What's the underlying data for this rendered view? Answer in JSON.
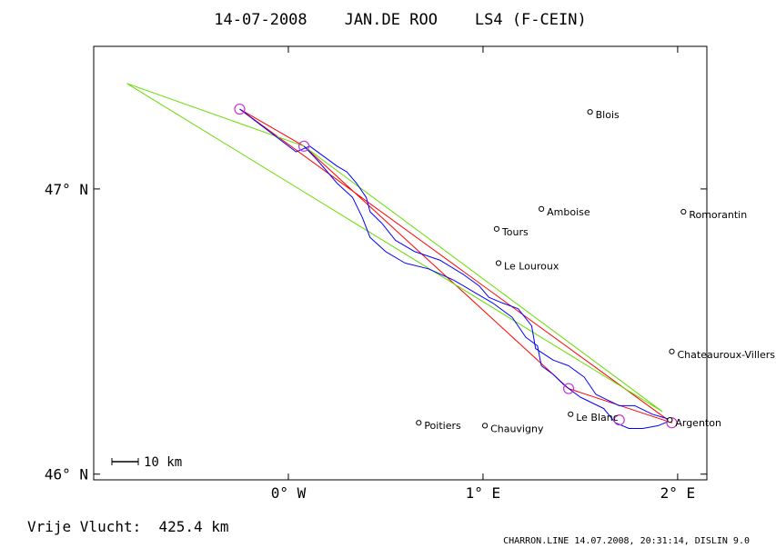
{
  "chart_data": {
    "type": "map",
    "title": "14-07-2008    JAN.DE ROO    LS4 (F-CEIN)",
    "footer_left": "Vrije Vlucht:  425.4 km",
    "footer_right": "CHARRON.LINE 14.07.2008, 20:31:14, DISLIN 9.0",
    "scale_bar_label": "10 km",
    "xlim": [
      -1.0,
      2.15
    ],
    "ylim": [
      45.98,
      47.5
    ],
    "x_ticks": [
      {
        "value": 0,
        "label": "0° W"
      },
      {
        "value": 1,
        "label": "1° E"
      },
      {
        "value": 2,
        "label": "2° E"
      }
    ],
    "y_ticks": [
      {
        "value": 47,
        "label": "47° N"
      },
      {
        "value": 46,
        "label": "46° N"
      }
    ],
    "cities": [
      {
        "name": "Blois",
        "lon": 1.55,
        "lat": 47.27
      },
      {
        "name": "Amboise",
        "lon": 1.3,
        "lat": 46.93
      },
      {
        "name": "Romorantin",
        "lon": 2.03,
        "lat": 46.92
      },
      {
        "name": "Tours",
        "lon": 1.07,
        "lat": 46.86
      },
      {
        "name": "Le Louroux",
        "lon": 1.08,
        "lat": 46.74
      },
      {
        "name": "Chateauroux-Villers",
        "lon": 1.97,
        "lat": 46.43
      },
      {
        "name": "Le Blanc",
        "lon": 1.45,
        "lat": 46.21
      },
      {
        "name": "Argenton",
        "lon": 1.96,
        "lat": 46.19
      },
      {
        "name": "Poitiers",
        "lon": 0.67,
        "lat": 46.18
      },
      {
        "name": "Chauvigny",
        "lon": 1.01,
        "lat": 46.17
      }
    ],
    "turnpoints": [
      {
        "lon": -0.25,
        "lat": 47.28
      },
      {
        "lon": 0.08,
        "lat": 47.15
      },
      {
        "lon": 1.44,
        "lat": 46.3
      },
      {
        "lon": 1.7,
        "lat": 46.19
      },
      {
        "lon": 1.97,
        "lat": 46.18
      }
    ],
    "series": [
      {
        "color": "#ff0000",
        "points": [
          [
            -0.25,
            47.28
          ],
          [
            0.08,
            47.15
          ],
          [
            1.44,
            46.3
          ],
          [
            1.97,
            46.18
          ],
          [
            -0.25,
            47.28
          ]
        ]
      },
      {
        "color": "#66dd00",
        "points": [
          [
            -0.83,
            47.37
          ],
          [
            0.08,
            47.15
          ],
          [
            1.92,
            46.22
          ],
          [
            -0.83,
            47.37
          ]
        ]
      },
      {
        "color": "#0000ff",
        "points": [
          [
            -0.25,
            47.28
          ],
          [
            0.04,
            47.13
          ],
          [
            0.11,
            47.15
          ],
          [
            0.25,
            47.08
          ],
          [
            0.3,
            47.06
          ],
          [
            0.35,
            47.02
          ],
          [
            0.4,
            46.97
          ],
          [
            0.42,
            46.92
          ],
          [
            0.48,
            46.88
          ],
          [
            0.55,
            46.82
          ],
          [
            0.65,
            46.78
          ],
          [
            0.78,
            46.75
          ],
          [
            0.9,
            46.7
          ],
          [
            0.98,
            46.66
          ],
          [
            1.03,
            46.62
          ],
          [
            1.1,
            46.6
          ],
          [
            1.18,
            46.58
          ],
          [
            1.25,
            46.52
          ],
          [
            1.27,
            46.44
          ],
          [
            1.36,
            46.4
          ],
          [
            1.44,
            46.38
          ],
          [
            1.52,
            46.34
          ],
          [
            1.58,
            46.28
          ],
          [
            1.7,
            46.24
          ],
          [
            1.78,
            46.24
          ],
          [
            1.87,
            46.21
          ],
          [
            1.92,
            46.2
          ],
          [
            1.97,
            46.19
          ],
          [
            1.9,
            46.17
          ],
          [
            1.82,
            46.16
          ],
          [
            1.75,
            46.16
          ],
          [
            1.68,
            46.18
          ],
          [
            1.62,
            46.23
          ],
          [
            1.5,
            46.27
          ],
          [
            1.42,
            46.31
          ],
          [
            1.36,
            46.35
          ],
          [
            1.3,
            46.38
          ],
          [
            1.28,
            46.45
          ],
          [
            1.22,
            46.48
          ],
          [
            1.15,
            46.55
          ],
          [
            1.05,
            46.6
          ],
          [
            0.95,
            46.64
          ],
          [
            0.85,
            46.68
          ],
          [
            0.72,
            46.72
          ],
          [
            0.6,
            46.74
          ],
          [
            0.5,
            46.78
          ],
          [
            0.42,
            46.83
          ],
          [
            0.38,
            46.9
          ],
          [
            0.33,
            46.97
          ],
          [
            0.25,
            47.02
          ],
          [
            0.15,
            47.1
          ],
          [
            0.08,
            47.15
          ]
        ]
      }
    ]
  }
}
